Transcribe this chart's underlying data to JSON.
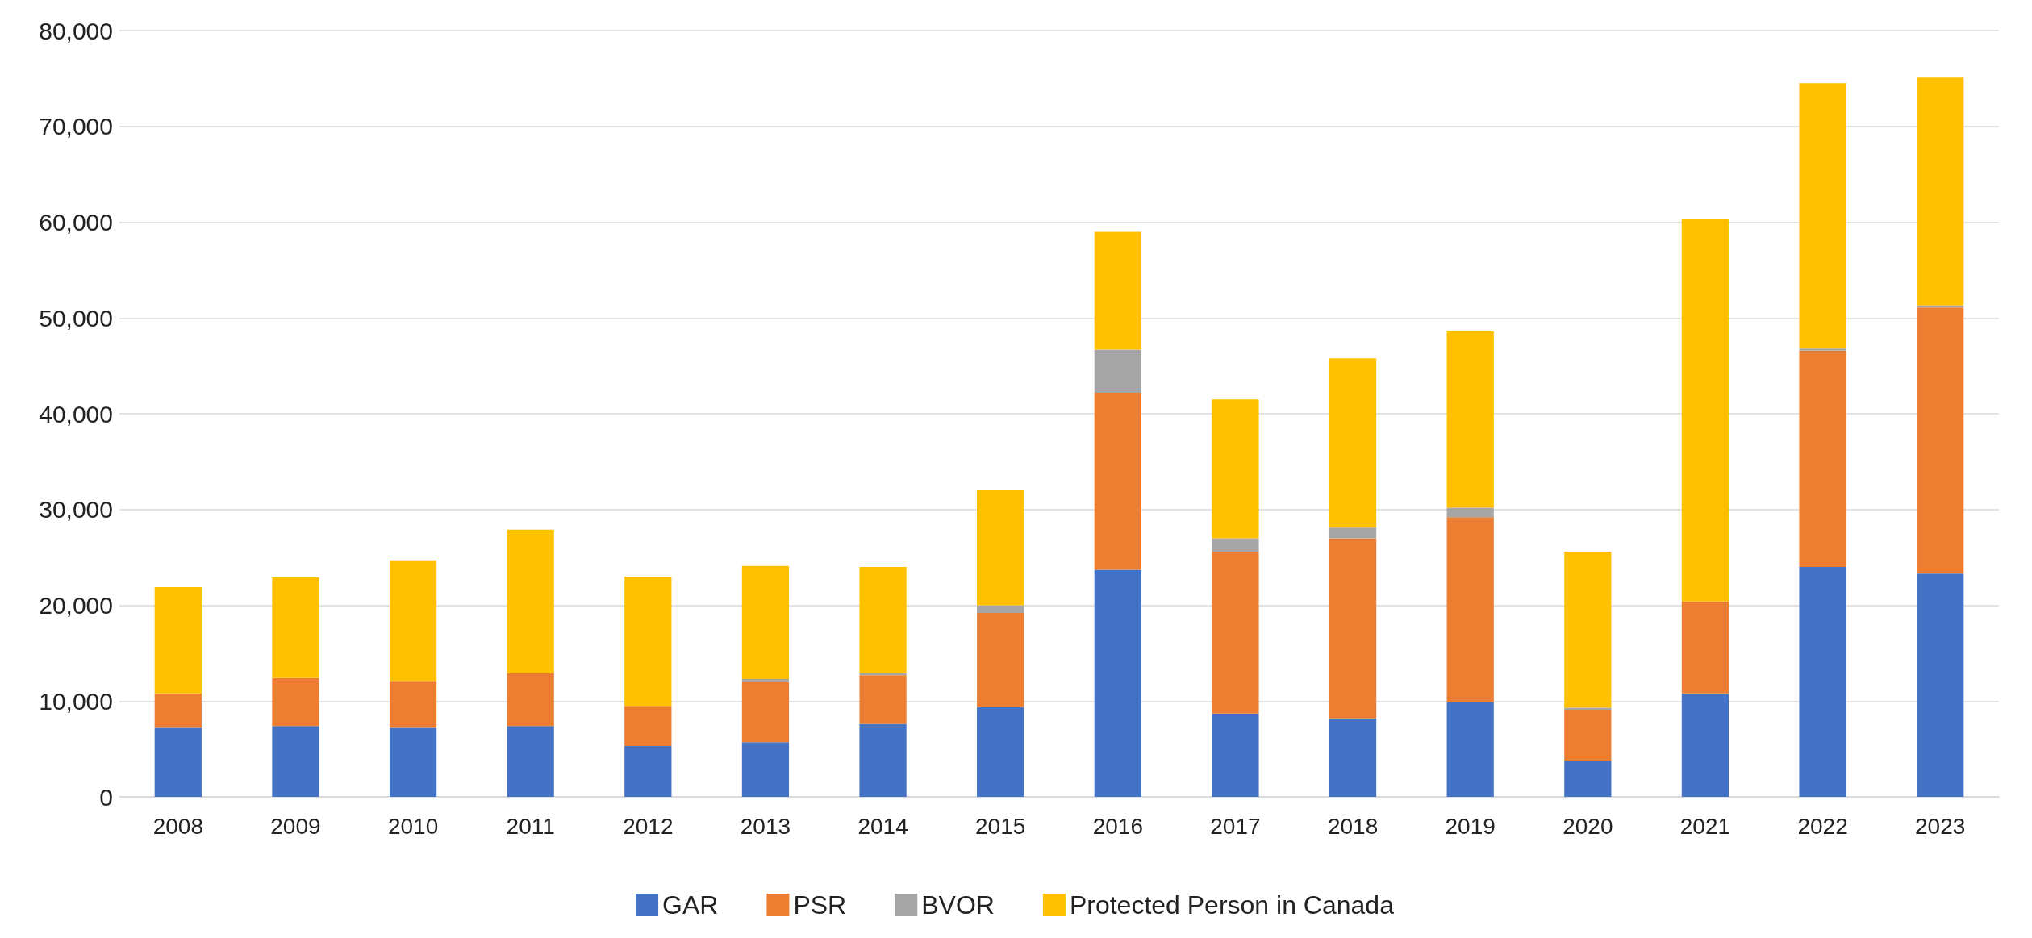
{
  "chart_data": {
    "type": "bar",
    "stacked": true,
    "categories": [
      "2008",
      "2009",
      "2010",
      "2011",
      "2012",
      "2013",
      "2014",
      "2015",
      "2016",
      "2017",
      "2018",
      "2019",
      "2020",
      "2021",
      "2022",
      "2023"
    ],
    "series": [
      {
        "name": "GAR",
        "color": "#4472c4",
        "values": [
          7200,
          7400,
          7200,
          7400,
          5300,
          5700,
          7600,
          9400,
          23700,
          8700,
          8200,
          9900,
          3800,
          10800,
          24000,
          23300
        ]
      },
      {
        "name": "PSR",
        "color": "#ed7d31",
        "values": [
          3600,
          5000,
          4900,
          5500,
          4200,
          6300,
          5100,
          9800,
          18500,
          16900,
          18800,
          19300,
          5300,
          9600,
          22600,
          27800
        ]
      },
      {
        "name": "BVOR",
        "color": "#a5a5a5",
        "values": [
          0,
          0,
          0,
          0,
          0,
          300,
          200,
          800,
          4500,
          1400,
          1100,
          1000,
          200,
          0,
          200,
          200
        ]
      },
      {
        "name": "Protected Person in Canada",
        "color": "#ffc000",
        "values": [
          11100,
          10500,
          12600,
          15000,
          13500,
          11800,
          11100,
          12000,
          12300,
          14500,
          17700,
          18400,
          16300,
          39900,
          27700,
          23800
        ]
      }
    ],
    "ylim": [
      0,
      80000
    ],
    "yticks": [
      0,
      {
        "value": 10000,
        "label": "10,000"
      },
      {
        "value": 20000,
        "label": "20,000"
      },
      {
        "value": 30000,
        "label": "30,000"
      },
      {
        "value": 40000,
        "label": "40,000"
      },
      {
        "value": 50000,
        "label": "50,000"
      },
      {
        "value": 60000,
        "label": "60,000"
      },
      {
        "value": 70000,
        "label": "70,000"
      },
      {
        "value": 80000,
        "label": "80,000"
      }
    ],
    "grid": "y",
    "legend": "bottom"
  }
}
